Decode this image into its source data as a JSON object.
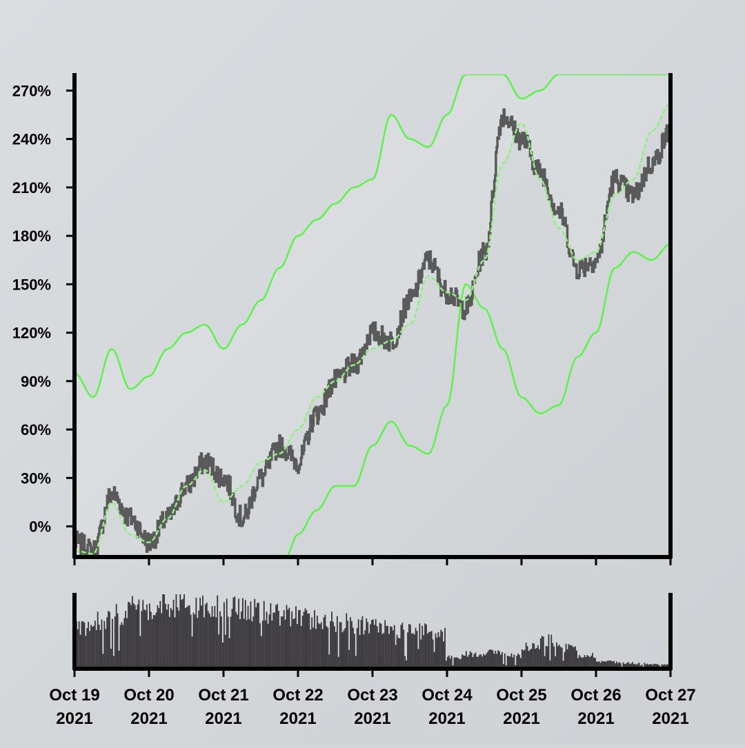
{
  "chart_data": [
    {
      "type": "line",
      "title": "",
      "xlabel": "",
      "ylabel": "",
      "y_unit": "%",
      "x_range": [
        "2021-10-19",
        "2021-10-27"
      ],
      "ylim": [
        -19,
        280
      ],
      "y_ticks": [
        0,
        30,
        60,
        90,
        120,
        150,
        180,
        210,
        240,
        270
      ],
      "y_tick_labels": [
        "0%",
        "30%",
        "60%",
        "90%",
        "120%",
        "150%",
        "180%",
        "210%",
        "240%",
        "270%"
      ],
      "x_ticks": [
        "2021-10-19",
        "2021-10-20",
        "2021-10-21",
        "2021-10-22",
        "2021-10-23",
        "2021-10-24",
        "2021-10-25",
        "2021-10-26",
        "2021-10-27"
      ],
      "x_tick_labels": [
        [
          "Oct 19",
          "2021"
        ],
        [
          "Oct 20",
          "2021"
        ],
        [
          "Oct 21",
          "2021"
        ],
        [
          "Oct 22",
          "2021"
        ],
        [
          "Oct 23",
          "2021"
        ],
        [
          "Oct 24",
          "2021"
        ],
        [
          "Oct 25",
          "2021"
        ],
        [
          "Oct 26",
          "2021"
        ],
        [
          "Oct 27",
          "2021"
        ]
      ],
      "grid": false,
      "legend": "none",
      "series_style": {
        "price": {
          "color": "#5a5a5a"
        },
        "band": {
          "color": "#5cf24a"
        }
      },
      "series": [
        {
          "role": "price",
          "x": [
            "2021-10-19 00:00",
            "2021-10-19 06:00",
            "2021-10-19 12:00",
            "2021-10-19 18:00",
            "2021-10-20 00:00",
            "2021-10-20 06:00",
            "2021-10-20 12:00",
            "2021-10-20 18:00",
            "2021-10-21 00:00",
            "2021-10-21 06:00",
            "2021-10-21 12:00",
            "2021-10-21 18:00",
            "2021-10-22 00:00",
            "2021-10-22 06:00",
            "2021-10-22 12:00",
            "2021-10-22 18:00",
            "2021-10-23 00:00",
            "2021-10-23 06:00",
            "2021-10-23 12:00",
            "2021-10-23 18:00",
            "2021-10-24 00:00",
            "2021-10-24 06:00",
            "2021-10-24 12:00",
            "2021-10-24 18:00",
            "2021-10-25 00:00",
            "2021-10-25 06:00",
            "2021-10-25 12:00",
            "2021-10-25 18:00",
            "2021-10-26 00:00",
            "2021-10-26 06:00",
            "2021-10-26 12:00",
            "2021-10-26 18:00",
            "2021-10-27 00:00"
          ],
          "y": [
            -10,
            -15,
            20,
            5,
            -10,
            5,
            25,
            40,
            30,
            5,
            30,
            50,
            40,
            70,
            90,
            100,
            120,
            115,
            140,
            165,
            145,
            135,
            170,
            255,
            240,
            220,
            195,
            160,
            165,
            215,
            205,
            225,
            245
          ]
        },
        {
          "role": "band-middle",
          "x": [
            "2021-10-19 00:00",
            "2021-10-19 06:00",
            "2021-10-19 12:00",
            "2021-10-19 18:00",
            "2021-10-20 00:00",
            "2021-10-20 06:00",
            "2021-10-20 12:00",
            "2021-10-20 18:00",
            "2021-10-21 00:00",
            "2021-10-21 06:00",
            "2021-10-21 12:00",
            "2021-10-21 18:00",
            "2021-10-22 00:00",
            "2021-10-22 06:00",
            "2021-10-22 12:00",
            "2021-10-22 18:00",
            "2021-10-23 00:00",
            "2021-10-23 06:00",
            "2021-10-23 12:00",
            "2021-10-23 18:00",
            "2021-10-24 00:00",
            "2021-10-24 06:00",
            "2021-10-24 12:00",
            "2021-10-24 18:00",
            "2021-10-25 00:00",
            "2021-10-25 06:00",
            "2021-10-25 12:00",
            "2021-10-25 18:00",
            "2021-10-26 00:00",
            "2021-10-26 06:00",
            "2021-10-26 12:00",
            "2021-10-26 18:00",
            "2021-10-27 00:00"
          ],
          "y": [
            -15,
            -17,
            15,
            -5,
            -10,
            5,
            25,
            35,
            15,
            25,
            40,
            45,
            60,
            80,
            90,
            100,
            110,
            115,
            125,
            155,
            145,
            140,
            165,
            225,
            250,
            215,
            185,
            165,
            170,
            205,
            215,
            245,
            262
          ]
        },
        {
          "role": "band-upper",
          "x": [
            "2021-10-19 00:00",
            "2021-10-19 06:00",
            "2021-10-19 12:00",
            "2021-10-19 18:00",
            "2021-10-20 00:00",
            "2021-10-20 06:00",
            "2021-10-20 12:00",
            "2021-10-20 18:00",
            "2021-10-21 00:00",
            "2021-10-21 06:00",
            "2021-10-21 12:00",
            "2021-10-21 18:00",
            "2021-10-22 00:00",
            "2021-10-22 06:00",
            "2021-10-22 12:00",
            "2021-10-22 18:00",
            "2021-10-23 00:00",
            "2021-10-23 06:00",
            "2021-10-23 12:00",
            "2021-10-23 18:00",
            "2021-10-24 00:00",
            "2021-10-24 06:00",
            "2021-10-24 12:00",
            "2021-10-24 18:00",
            "2021-10-25 00:00",
            "2021-10-25 06:00",
            "2021-10-25 12:00",
            "2021-10-25 18:00",
            "2021-10-26 00:00",
            "2021-10-26 06:00",
            "2021-10-26 12:00",
            "2021-10-26 18:00",
            "2021-10-27 00:00"
          ],
          "y": [
            95,
            80,
            110,
            85,
            93,
            110,
            120,
            125,
            110,
            125,
            140,
            160,
            180,
            190,
            200,
            210,
            215,
            255,
            240,
            235,
            255,
            280,
            280,
            280,
            265,
            270,
            280,
            280,
            280,
            280,
            280,
            280,
            280
          ]
        },
        {
          "role": "band-lower",
          "x": [
            "2021-10-21 20:00",
            "2021-10-22 00:00",
            "2021-10-22 06:00",
            "2021-10-22 12:00",
            "2021-10-22 18:00",
            "2021-10-23 00:00",
            "2021-10-23 06:00",
            "2021-10-23 12:00",
            "2021-10-23 18:00",
            "2021-10-24 00:00",
            "2021-10-24 06:00",
            "2021-10-24 12:00",
            "2021-10-24 18:00",
            "2021-10-25 00:00",
            "2021-10-25 06:00",
            "2021-10-25 12:00",
            "2021-10-25 18:00",
            "2021-10-26 00:00",
            "2021-10-26 06:00",
            "2021-10-26 12:00",
            "2021-10-26 18:00",
            "2021-10-27 00:00"
          ],
          "y": [
            -19,
            -5,
            10,
            25,
            25,
            50,
            65,
            50,
            45,
            75,
            150,
            135,
            110,
            80,
            70,
            75,
            105,
            120,
            160,
            170,
            165,
            175
          ]
        }
      ]
    },
    {
      "type": "bar",
      "title": "",
      "xlabel": "",
      "ylabel": "",
      "x_range": [
        "2021-10-19",
        "2021-10-27"
      ],
      "ylim": [
        0,
        100
      ],
      "y_ticks": [],
      "x_ticks": [
        "2021-10-19",
        "2021-10-20",
        "2021-10-21",
        "2021-10-22",
        "2021-10-23",
        "2021-10-24",
        "2021-10-25",
        "2021-10-26",
        "2021-10-27"
      ],
      "grid": false,
      "bar_color": "#333134",
      "period_hours": 6,
      "values": [
        56,
        66,
        74,
        80,
        85,
        86,
        84,
        82,
        80,
        78,
        76,
        72,
        67,
        65,
        62,
        58,
        56,
        52,
        50,
        46,
        16,
        20,
        22,
        18,
        30,
        38,
        28,
        18,
        10,
        8,
        7,
        6
      ]
    }
  ]
}
